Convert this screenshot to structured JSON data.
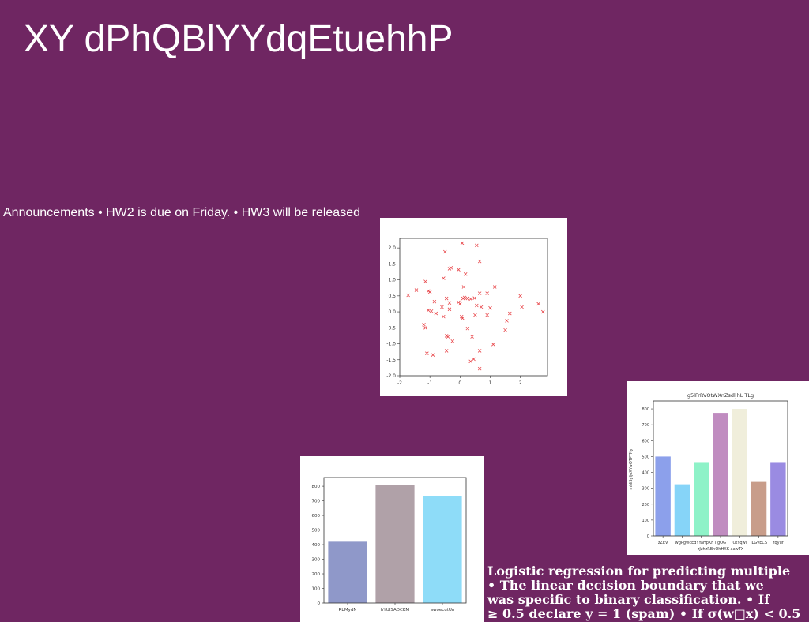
{
  "slide": {
    "title": "XY dPhQBlYYdqEtuehhP",
    "announcements": "Announcements • HW2 is due on Friday. • HW3 will be released",
    "caption_lines": [
      "Logistic regression for predicting multiple",
      "• The linear decision boundary that we",
      "was specific to binary classification. • If",
      "≥ 0.5 declare y = 1 (spam) • If σ(w□x) < 0.5"
    ]
  },
  "chart_data": [
    {
      "type": "scatter",
      "title": "",
      "xlabel": "",
      "ylabel": "",
      "xlim": [
        -2,
        2.9
      ],
      "ylim": [
        -2.0,
        2.3
      ],
      "xticks": [
        -2,
        -1,
        0,
        1,
        2
      ],
      "yticks": [
        -2.0,
        -1.5,
        -1.0,
        -0.5,
        0.0,
        0.5,
        1.0,
        1.5,
        2.0
      ],
      "marker": "x",
      "color": "#e8474b",
      "points": [
        [
          0.07,
          2.15
        ],
        [
          0.55,
          2.08
        ],
        [
          -0.5,
          1.88
        ],
        [
          0.65,
          1.58
        ],
        [
          -0.3,
          1.38
        ],
        [
          -0.35,
          1.35
        ],
        [
          -0.05,
          1.32
        ],
        [
          0.18,
          1.18
        ],
        [
          -1.15,
          0.95
        ],
        [
          -0.55,
          1.05
        ],
        [
          0.12,
          0.78
        ],
        [
          -1.45,
          0.68
        ],
        [
          -1.05,
          0.65
        ],
        [
          1.15,
          0.78
        ],
        [
          -1.72,
          0.52
        ],
        [
          -1.0,
          0.62
        ],
        [
          0.65,
          0.58
        ],
        [
          0.9,
          0.58
        ],
        [
          -0.45,
          0.42
        ],
        [
          0.15,
          0.45
        ],
        [
          0.1,
          0.42
        ],
        [
          0.25,
          0.42
        ],
        [
          0.35,
          0.4
        ],
        [
          0.48,
          0.43
        ],
        [
          2.0,
          0.5
        ],
        [
          -0.85,
          0.32
        ],
        [
          -0.35,
          0.28
        ],
        [
          -0.05,
          0.3
        ],
        [
          0.0,
          0.25
        ],
        [
          2.6,
          0.25
        ],
        [
          -0.6,
          0.15
        ],
        [
          -0.35,
          0.08
        ],
        [
          0.55,
          0.2
        ],
        [
          0.7,
          0.15
        ],
        [
          1.0,
          0.12
        ],
        [
          2.05,
          0.15
        ],
        [
          -1.05,
          0.05
        ],
        [
          -0.95,
          0.02
        ],
        [
          -0.8,
          -0.05
        ],
        [
          0.05,
          -0.15
        ],
        [
          0.08,
          -0.2
        ],
        [
          0.5,
          -0.1
        ],
        [
          0.9,
          -0.1
        ],
        [
          1.65,
          -0.05
        ],
        [
          -0.55,
          -0.15
        ],
        [
          1.55,
          -0.28
        ],
        [
          2.75,
          0.0
        ],
        [
          -1.2,
          -0.4
        ],
        [
          -1.15,
          -0.5
        ],
        [
          0.25,
          -0.52
        ],
        [
          1.5,
          -0.57
        ],
        [
          -0.45,
          -0.75
        ],
        [
          -0.4,
          -0.78
        ],
        [
          0.4,
          -0.78
        ],
        [
          -0.25,
          -0.92
        ],
        [
          1.1,
          -1.02
        ],
        [
          -0.45,
          -1.22
        ],
        [
          -1.1,
          -1.3
        ],
        [
          -0.9,
          -1.35
        ],
        [
          0.65,
          -1.22
        ],
        [
          0.45,
          -1.48
        ],
        [
          0.35,
          -1.55
        ],
        [
          0.65,
          -1.78
        ]
      ]
    },
    {
      "type": "bar",
      "title": "g5lFrRVOtWXnZsdljhL TLg",
      "xlabel": "zJzhzRBnOhHXK aawTX",
      "ylabel": "mNiSyljoXYwOTPTNyr",
      "ylim": [
        0,
        850
      ],
      "yticks": [
        0,
        100,
        200,
        300,
        400,
        500,
        600,
        700,
        800
      ],
      "categories": [
        "zZEV",
        "wgPgw",
        "cEdYYaHpKF",
        "l gOG",
        "OtYqwi",
        "ILGvECS",
        "zqyur"
      ],
      "values": [
        500,
        325,
        465,
        775,
        800,
        340,
        465
      ],
      "colors": [
        "#8ca0eb",
        "#86d4f8",
        "#8ef2c8",
        "#c08cc0",
        "#f0eedb",
        "#c89d8a",
        "#9a8be2"
      ]
    },
    {
      "type": "bar",
      "title": "",
      "xlabel": "",
      "ylabel": "",
      "ylim": [
        0,
        860
      ],
      "yticks": [
        0,
        100,
        200,
        300,
        400,
        500,
        600,
        700,
        800
      ],
      "categories": [
        "RbMydN",
        "hYUISADCKM",
        "awoecutUn"
      ],
      "values": [
        420,
        810,
        735
      ],
      "colors": [
        "#8f98c9",
        "#b0a1a8",
        "#8edcf8"
      ]
    }
  ]
}
